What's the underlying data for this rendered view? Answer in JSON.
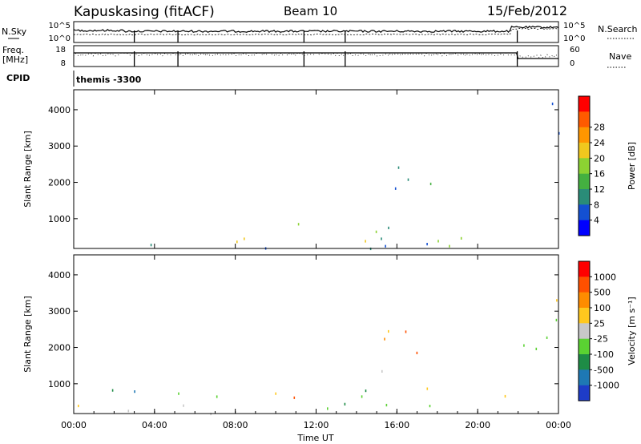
{
  "header": {
    "station": "Kapuskasing (fitACF)",
    "beam": "Beam 10",
    "date": "15/Feb/2012"
  },
  "strip_nsky": {
    "left_label": "N.Sky",
    "right_label": "N.Search",
    "left_ticks": [
      "10^5",
      "10^0"
    ],
    "right_ticks": [
      "10^5",
      "10^0"
    ]
  },
  "strip_freq": {
    "left_label_line1": "Freq.",
    "left_label_line2": "[MHz]",
    "right_label": "Nave",
    "left_ticks": [
      "18",
      "8"
    ],
    "right_ticks": [
      "60",
      "0"
    ]
  },
  "cpid": {
    "label": "CPID",
    "value": "themis -3300"
  },
  "chart_data": [
    {
      "type": "heatmap",
      "name": "power",
      "ylabel": "Slant Range [km]",
      "xlabel": "",
      "ylim": [
        180,
        4550
      ],
      "xlim": [
        0,
        24
      ],
      "y_ticks": [
        "1000",
        "2000",
        "3000",
        "4000"
      ],
      "colorbar": {
        "label": "Power [dB]",
        "ticks": [
          "4",
          "8",
          "12",
          "16",
          "20",
          "24",
          "28"
        ],
        "colors": [
          "#0000ff",
          "#1450d2",
          "#2a8c78",
          "#44b040",
          "#8cd232",
          "#f0c81e",
          "#ff9600",
          "#ff5a00",
          "#ff0000"
        ]
      },
      "regions": [
        {
          "x": [
            0,
            22
          ],
          "y": [
            200,
            900
          ],
          "level": 0.35
        },
        {
          "x": [
            9.5,
            11
          ],
          "y": [
            400,
            1200
          ],
          "level": 0.7
        },
        {
          "x": [
            14.2,
            18
          ],
          "y": [
            1200,
            2500
          ],
          "level": 0.3
        },
        {
          "x": [
            22,
            24
          ],
          "y": [
            1300,
            2300
          ],
          "level": 0.15
        },
        {
          "x": [
            23,
            24
          ],
          "y": [
            2300,
            4500
          ],
          "level": 0.1
        }
      ]
    },
    {
      "type": "heatmap",
      "name": "velocity",
      "ylabel": "Slant Range [km]",
      "xlabel": "Time UT",
      "ylim": [
        180,
        4550
      ],
      "xlim": [
        0,
        24
      ],
      "x_ticks": [
        "00:00",
        "04:00",
        "08:00",
        "12:00",
        "16:00",
        "20:00",
        "00:00"
      ],
      "y_ticks": [
        "1000",
        "2000",
        "3000",
        "4000"
      ],
      "colorbar": {
        "label": "Velocity [m s⁻¹]",
        "ticks": [
          "1000",
          "500",
          "100",
          "25",
          "-25",
          "-100",
          "-500",
          "-1000"
        ],
        "colors": [
          "#1e3cc8",
          "#1e78b4",
          "#1e8c46",
          "#5ad232",
          "#c8c8c8",
          "#ffc81e",
          "#ff8c00",
          "#ff5000",
          "#ff0000"
        ]
      },
      "regions": [
        {
          "x": [
            0,
            22
          ],
          "y": [
            200,
            900
          ],
          "level": 0.45
        },
        {
          "x": [
            9.5,
            11
          ],
          "y": [
            400,
            1200
          ],
          "level": 0.6
        },
        {
          "x": [
            14.2,
            18
          ],
          "y": [
            1200,
            2500
          ],
          "level": 0.75
        },
        {
          "x": [
            22,
            24
          ],
          "y": [
            1300,
            2900
          ],
          "level": 0.45
        },
        {
          "x": [
            23,
            24
          ],
          "y": [
            2900,
            4500
          ],
          "level": 0.7
        }
      ]
    }
  ]
}
